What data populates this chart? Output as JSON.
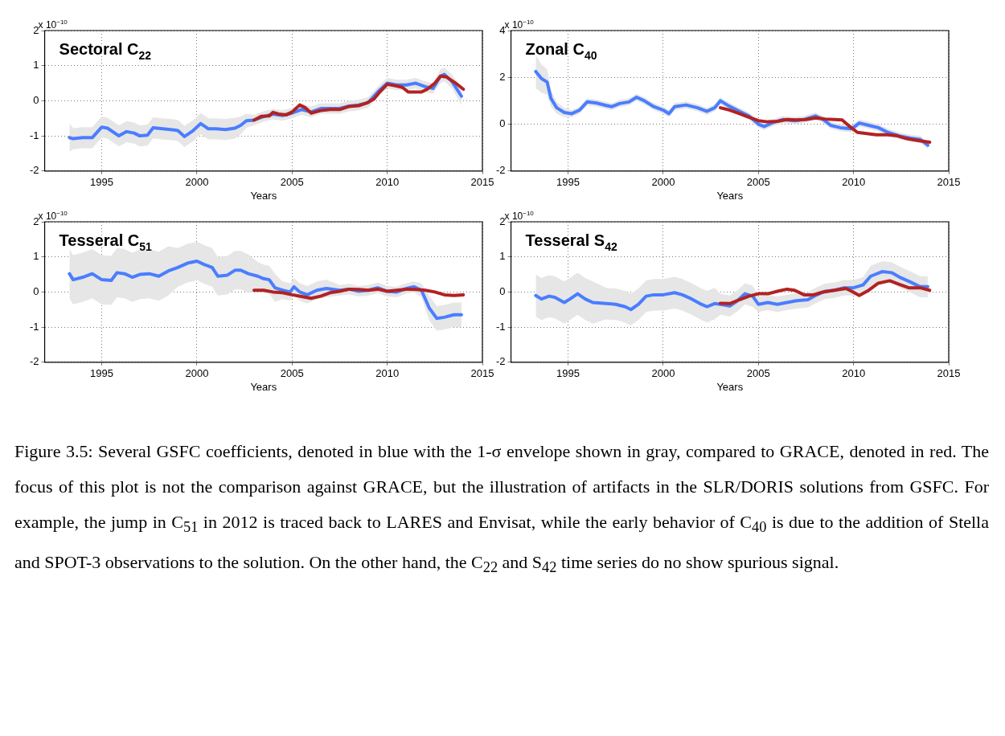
{
  "chart_data": [
    {
      "type": "line",
      "title": "Sectoral C$_{22}$",
      "xlabel": "Years",
      "annotations": [
        "x 10$^{−10}$"
      ],
      "xlim": [
        1992,
        2015
      ],
      "xticks": [
        1995,
        2000,
        2005,
        2010,
        2015
      ],
      "ylim": [
        -2,
        2
      ],
      "yticks": [
        -2,
        -1,
        0,
        1,
        2
      ],
      "grid": true,
      "marker": "none",
      "series": [
        {
          "color": "#4a7dff",
          "x": [
            1993.3,
            1993.5,
            1994.0,
            1994.5,
            1995.0,
            1995.3,
            1995.9,
            1996.3,
            1996.7,
            1997.0,
            1997.4,
            1997.7,
            1998.2,
            1998.8,
            1999.0,
            1999.35,
            1999.8,
            2000.2,
            2000.6,
            2001.0,
            2001.5,
            2002.0,
            2002.3,
            2002.6,
            2003.0,
            2003.5,
            2004.0,
            2004.5,
            2005.0,
            2005.5,
            2006.0,
            2006.5,
            2007.0,
            2007.5,
            2008.0,
            2008.5,
            2009.0,
            2009.5,
            2010.0,
            2010.5,
            2011.0,
            2011.5,
            2012.0,
            2012.4,
            2012.8,
            2013.0,
            2013.4,
            2013.9
          ],
          "values": [
            -1.05,
            -1.08,
            -1.05,
            -1.05,
            -0.75,
            -0.78,
            -1.0,
            -0.88,
            -0.92,
            -1.0,
            -0.98,
            -0.77,
            -0.8,
            -0.83,
            -0.85,
            -1.02,
            -0.85,
            -0.65,
            -0.8,
            -0.8,
            -0.82,
            -0.78,
            -0.7,
            -0.57,
            -0.55,
            -0.45,
            -0.38,
            -0.42,
            -0.35,
            -0.25,
            -0.32,
            -0.22,
            -0.22,
            -0.22,
            -0.15,
            -0.12,
            -0.05,
            0.25,
            0.5,
            0.45,
            0.45,
            0.5,
            0.4,
            0.35,
            0.7,
            0.75,
            0.55,
            0.13
          ],
          "upper": [
            -0.65,
            -0.78,
            -0.75,
            -0.75,
            -0.45,
            -0.48,
            -0.7,
            -0.58,
            -0.62,
            -0.7,
            -0.68,
            -0.47,
            -0.5,
            -0.53,
            -0.55,
            -0.72,
            -0.55,
            -0.35,
            -0.5,
            -0.5,
            -0.52,
            -0.48,
            -0.45,
            -0.37,
            -0.4,
            -0.3,
            -0.23,
            -0.27,
            -0.2,
            -0.1,
            -0.17,
            -0.07,
            -0.07,
            -0.07,
            0,
            0.03,
            0.1,
            0.4,
            0.65,
            0.6,
            0.6,
            0.65,
            0.55,
            0.5,
            0.9,
            0.95,
            0.75,
            0.38
          ],
          "lower": [
            -1.45,
            -1.38,
            -1.35,
            -1.35,
            -1.05,
            -1.08,
            -1.3,
            -1.18,
            -1.22,
            -1.3,
            -1.28,
            -1.07,
            -1.1,
            -1.13,
            -1.15,
            -1.32,
            -1.15,
            -0.95,
            -1.1,
            -1.1,
            -1.12,
            -1.08,
            -0.95,
            -0.77,
            -0.7,
            -0.6,
            -0.53,
            -0.57,
            -0.5,
            -0.4,
            -0.47,
            -0.37,
            -0.37,
            -0.37,
            -0.3,
            -0.27,
            -0.2,
            0.1,
            0.35,
            0.3,
            0.3,
            0.35,
            0.25,
            0.2,
            0.5,
            0.55,
            0.35,
            -0.12
          ]
        },
        {
          "color": "#b22222",
          "x": [
            2003.0,
            2003.4,
            2003.8,
            2004.0,
            2004.3,
            2004.7,
            2005.0,
            2005.4,
            2005.7,
            2006.0,
            2006.5,
            2007.0,
            2007.5,
            2008.0,
            2008.5,
            2008.9,
            2009.3,
            2009.6,
            2010.0,
            2010.5,
            2010.8,
            2011.1,
            2011.5,
            2011.8,
            2012.1,
            2012.5,
            2012.8,
            2013.1,
            2013.6,
            2014.0
          ],
          "values": [
            -0.55,
            -0.44,
            -0.43,
            -0.33,
            -0.38,
            -0.4,
            -0.32,
            -0.12,
            -0.2,
            -0.35,
            -0.28,
            -0.25,
            -0.25,
            -0.16,
            -0.14,
            -0.07,
            0.05,
            0.25,
            0.47,
            0.42,
            0.38,
            0.25,
            0.25,
            0.25,
            0.33,
            0.5,
            0.7,
            0.68,
            0.5,
            0.33
          ]
        }
      ]
    },
    {
      "type": "line",
      "title": "Zonal C$_{40}$",
      "xlabel": "Years",
      "annotations": [
        "x 10$^{−10}$"
      ],
      "xlim": [
        1992,
        2015
      ],
      "xticks": [
        1995,
        2000,
        2005,
        2010,
        2015
      ],
      "ylim": [
        -2,
        4
      ],
      "yticks": [
        -2,
        0,
        2,
        4
      ],
      "grid": true,
      "marker": "none",
      "series": [
        {
          "color": "#4a7dff",
          "x": [
            1993.3,
            1993.6,
            1993.9,
            1994.1,
            1994.4,
            1994.8,
            1995.2,
            1995.6,
            1996.0,
            1996.5,
            1997.0,
            1997.3,
            1997.7,
            1998.2,
            1998.6,
            1999.0,
            1999.5,
            2000.0,
            2000.3,
            2000.6,
            2001.2,
            2001.8,
            2002.3,
            2002.7,
            2003.0,
            2003.4,
            2004.0,
            2004.5,
            2005.0,
            2005.3,
            2005.7,
            2006.3,
            2006.9,
            2007.4,
            2008.0,
            2008.4,
            2008.8,
            2009.3,
            2009.9,
            2010.3,
            2010.8,
            2011.3,
            2011.8,
            2012.4,
            2013.0,
            2013.5,
            2013.9
          ],
          "values": [
            2.25,
            1.95,
            1.8,
            1.1,
            0.7,
            0.5,
            0.45,
            0.6,
            0.95,
            0.9,
            0.8,
            0.75,
            0.88,
            0.95,
            1.15,
            1.0,
            0.75,
            0.6,
            0.45,
            0.75,
            0.82,
            0.7,
            0.55,
            0.7,
            1.0,
            0.8,
            0.55,
            0.35,
            0.0,
            -0.1,
            0.05,
            0.2,
            0.15,
            0.2,
            0.35,
            0.2,
            -0.05,
            -0.15,
            -0.2,
            0.05,
            -0.05,
            -0.15,
            -0.35,
            -0.5,
            -0.6,
            -0.65,
            -0.9
          ],
          "upper": [
            2.95,
            2.55,
            2.35,
            1.45,
            0.95,
            0.7,
            0.6,
            0.75,
            1.1,
            1.05,
            0.95,
            0.9,
            1.03,
            1.1,
            1.3,
            1.15,
            0.9,
            0.75,
            0.6,
            0.9,
            0.97,
            0.85,
            0.7,
            0.85,
            1.15,
            0.95,
            0.7,
            0.5,
            0.15,
            0.05,
            0.2,
            0.35,
            0.3,
            0.35,
            0.5,
            0.35,
            0.1,
            0.0,
            -0.05,
            0.2,
            0.1,
            0.0,
            -0.2,
            -0.35,
            -0.45,
            -0.5,
            -0.75
          ],
          "lower": [
            1.55,
            1.35,
            1.25,
            0.75,
            0.45,
            0.3,
            0.3,
            0.45,
            0.8,
            0.75,
            0.65,
            0.6,
            0.73,
            0.8,
            1.0,
            0.85,
            0.6,
            0.45,
            0.3,
            0.6,
            0.67,
            0.55,
            0.4,
            0.55,
            0.85,
            0.65,
            0.4,
            0.2,
            -0.15,
            -0.25,
            -0.1,
            0.05,
            0.0,
            0.05,
            0.2,
            0.05,
            -0.2,
            -0.3,
            -0.35,
            -0.1,
            -0.2,
            -0.3,
            -0.5,
            -0.65,
            -0.75,
            -0.8,
            -1.05
          ]
        },
        {
          "color": "#b22222",
          "x": [
            2003.0,
            2003.5,
            2004.0,
            2004.5,
            2005.0,
            2005.5,
            2006.0,
            2006.5,
            2007.0,
            2007.5,
            2008.0,
            2008.5,
            2009.0,
            2009.4,
            2009.8,
            2010.2,
            2010.7,
            2011.2,
            2011.8,
            2012.3,
            2012.8,
            2013.4,
            2014.0
          ],
          "values": [
            0.7,
            0.6,
            0.45,
            0.3,
            0.15,
            0.1,
            0.12,
            0.2,
            0.18,
            0.2,
            0.27,
            0.22,
            0.2,
            0.18,
            -0.1,
            -0.35,
            -0.4,
            -0.45,
            -0.45,
            -0.5,
            -0.62,
            -0.7,
            -0.77
          ]
        }
      ]
    },
    {
      "type": "line",
      "title": "Tesseral C$_{51}$",
      "xlabel": "Years",
      "annotations": [
        "x 10$^{−10}$"
      ],
      "xlim": [
        1992,
        2015
      ],
      "xticks": [
        1995,
        2000,
        2005,
        2010,
        2015
      ],
      "ylim": [
        -2,
        2
      ],
      "yticks": [
        -2,
        -1,
        0,
        1,
        2
      ],
      "grid": true,
      "marker": "none",
      "series": [
        {
          "color": "#4a7dff",
          "x": [
            1993.3,
            1993.5,
            1994.0,
            1994.5,
            1995.0,
            1995.5,
            1995.8,
            1996.2,
            1996.6,
            1997.0,
            1997.5,
            1998.0,
            1998.5,
            1999.0,
            1999.5,
            2000.0,
            2000.4,
            2000.8,
            2001.1,
            2001.6,
            2002.0,
            2002.3,
            2002.7,
            2003.2,
            2003.5,
            2003.8,
            2004.1,
            2004.5,
            2004.9,
            2005.1,
            2005.4,
            2005.8,
            2006.3,
            2006.8,
            2007.5,
            2008.0,
            2008.5,
            2009.0,
            2009.5,
            2010.0,
            2010.5,
            2011.0,
            2011.4,
            2011.8,
            2012.2,
            2012.6,
            2013.0,
            2013.5,
            2013.9
          ],
          "values": [
            0.52,
            0.35,
            0.42,
            0.52,
            0.35,
            0.33,
            0.55,
            0.52,
            0.42,
            0.5,
            0.52,
            0.45,
            0.6,
            0.7,
            0.82,
            0.88,
            0.78,
            0.7,
            0.45,
            0.48,
            0.62,
            0.62,
            0.52,
            0.45,
            0.38,
            0.35,
            0.12,
            0.05,
            0.0,
            0.15,
            0.0,
            -0.08,
            0.05,
            0.1,
            0.05,
            0.08,
            0.02,
            0.05,
            0.12,
            0.02,
            0.0,
            0.1,
            0.15,
            0.05,
            -0.45,
            -0.75,
            -0.72,
            -0.65,
            -0.65
          ],
          "upper": [
            1.22,
            1.05,
            1.12,
            1.22,
            1.05,
            1.03,
            1.25,
            1.22,
            1.12,
            1.2,
            1.22,
            1.15,
            1.3,
            1.25,
            1.37,
            1.43,
            1.33,
            1.25,
            1.0,
            1.03,
            1.17,
            1.17,
            1.07,
            0.85,
            0.78,
            0.75,
            0.52,
            0.3,
            0.25,
            0.4,
            0.25,
            0.17,
            0.3,
            0.35,
            0.2,
            0.23,
            0.17,
            0.2,
            0.27,
            0.17,
            0.15,
            0.25,
            0.3,
            0.25,
            -0.1,
            -0.4,
            -0.37,
            -0.3,
            -0.3
          ],
          "lower": [
            -0.18,
            -0.35,
            -0.28,
            -0.18,
            -0.35,
            -0.37,
            -0.15,
            -0.18,
            -0.28,
            -0.2,
            -0.18,
            -0.25,
            -0.1,
            0.15,
            0.27,
            0.33,
            0.23,
            0.15,
            -0.1,
            -0.07,
            0.07,
            0.07,
            -0.03,
            0.05,
            -0.02,
            -0.05,
            -0.28,
            -0.2,
            -0.25,
            -0.1,
            -0.25,
            -0.33,
            -0.2,
            -0.15,
            -0.1,
            -0.07,
            -0.13,
            -0.1,
            -0.03,
            -0.13,
            -0.15,
            -0.05,
            0.0,
            -0.15,
            -0.8,
            -1.1,
            -1.07,
            -1.0,
            -1.0
          ]
        },
        {
          "color": "#b22222",
          "x": [
            2003.0,
            2003.5,
            2004.0,
            2004.5,
            2005.0,
            2005.5,
            2006.0,
            2006.5,
            2007.0,
            2007.5,
            2008.0,
            2008.5,
            2009.0,
            2009.5,
            2010.0,
            2010.5,
            2011.0,
            2011.5,
            2012.0,
            2012.5,
            2013.0,
            2013.5,
            2014.0
          ],
          "values": [
            0.05,
            0.05,
            0.0,
            -0.02,
            -0.08,
            -0.13,
            -0.18,
            -0.12,
            -0.02,
            0.02,
            0.08,
            0.07,
            0.05,
            0.08,
            0.02,
            0.05,
            0.08,
            0.07,
            0.05,
            0.0,
            -0.08,
            -0.1,
            -0.08
          ]
        }
      ]
    },
    {
      "type": "line",
      "title": "Tesseral S$_{42}$",
      "xlabel": "Years",
      "annotations": [
        "x 10$^{−10}$"
      ],
      "xlim": [
        1992,
        2015
      ],
      "xticks": [
        1995,
        2000,
        2005,
        2010,
        2015
      ],
      "ylim": [
        -2,
        2
      ],
      "yticks": [
        -2,
        -1,
        0,
        1,
        2
      ],
      "grid": true,
      "marker": "none",
      "series": [
        {
          "color": "#4a7dff",
          "x": [
            1993.3,
            1993.6,
            1994.0,
            1994.3,
            1994.8,
            1995.1,
            1995.5,
            1995.9,
            1996.3,
            1997.0,
            1997.5,
            1998.0,
            1998.3,
            1998.7,
            1999.1,
            1999.5,
            2000.0,
            2000.6,
            2001.0,
            2001.5,
            2002.0,
            2002.3,
            2002.7,
            2003.0,
            2003.5,
            2003.9,
            2004.3,
            2004.7,
            2005.0,
            2005.5,
            2006.0,
            2006.5,
            2007.0,
            2007.6,
            2008.0,
            2008.5,
            2009.0,
            2009.5,
            2010.0,
            2010.5,
            2010.9,
            2011.5,
            2012.0,
            2012.5,
            2013.0,
            2013.5,
            2013.9
          ],
          "values": [
            -0.1,
            -0.2,
            -0.12,
            -0.15,
            -0.3,
            -0.2,
            -0.05,
            -0.2,
            -0.3,
            -0.33,
            -0.35,
            -0.42,
            -0.5,
            -0.35,
            -0.12,
            -0.08,
            -0.08,
            -0.02,
            -0.08,
            -0.2,
            -0.35,
            -0.42,
            -0.33,
            -0.35,
            -0.4,
            -0.25,
            -0.05,
            -0.12,
            -0.35,
            -0.3,
            -0.35,
            -0.3,
            -0.25,
            -0.22,
            -0.1,
            0.02,
            0.05,
            0.12,
            0.12,
            0.2,
            0.45,
            0.58,
            0.55,
            0.4,
            0.28,
            0.15,
            0.15
          ],
          "upper": [
            0.5,
            0.4,
            0.48,
            0.45,
            0.3,
            0.4,
            0.55,
            0.4,
            0.3,
            0.12,
            0.1,
            0.03,
            -0.05,
            0.1,
            0.33,
            0.37,
            0.37,
            0.43,
            0.37,
            0.25,
            0.1,
            0.03,
            0.12,
            -0.05,
            -0.1,
            0.05,
            0.25,
            0.18,
            -0.13,
            -0.08,
            -0.13,
            -0.08,
            -0.03,
            0.0,
            0.12,
            0.24,
            0.27,
            0.34,
            0.34,
            0.42,
            0.75,
            0.88,
            0.85,
            0.7,
            0.58,
            0.45,
            0.45
          ],
          "lower": [
            -0.7,
            -0.8,
            -0.72,
            -0.75,
            -0.9,
            -0.8,
            -0.65,
            -0.8,
            -0.9,
            -0.78,
            -0.8,
            -0.87,
            -0.95,
            -0.8,
            -0.57,
            -0.53,
            -0.53,
            -0.47,
            -0.53,
            -0.65,
            -0.8,
            -0.87,
            -0.78,
            -0.65,
            -0.7,
            -0.55,
            -0.35,
            -0.42,
            -0.57,
            -0.52,
            -0.57,
            -0.52,
            -0.47,
            -0.44,
            -0.32,
            -0.2,
            -0.17,
            -0.1,
            -0.1,
            -0.02,
            0.15,
            0.28,
            0.25,
            0.1,
            -0.02,
            -0.15,
            -0.15
          ]
        },
        {
          "color": "#b22222",
          "x": [
            2003.0,
            2003.5,
            2004.0,
            2004.5,
            2005.0,
            2005.5,
            2006.0,
            2006.5,
            2006.9,
            2007.4,
            2007.9,
            2008.4,
            2009.0,
            2009.6,
            2009.9,
            2010.3,
            2010.8,
            2011.3,
            2011.9,
            2012.4,
            2012.9,
            2013.5,
            2014.0
          ],
          "values": [
            -0.32,
            -0.33,
            -0.22,
            -0.12,
            -0.05,
            -0.05,
            0.02,
            0.08,
            0.05,
            -0.08,
            -0.08,
            0.0,
            0.05,
            0.1,
            0.02,
            -0.1,
            0.05,
            0.25,
            0.32,
            0.22,
            0.12,
            0.12,
            0.05
          ]
        }
      ]
    },
    {
      "type": "other",
      "annotations": [
        "Figure 3.5: Several GSFC coefficients, denoted in blue with the 1-σ envelope shown in gray, compared to GRACE, denoted in red.  The focus of this plot is not the comparison against GRACE, but the illustration of artifacts in the SLR/DORIS solutions from GSFC. For example, the jump in C$_{51}$ in 2012 is traced back to LARES and Envisat, while the early behavior of C$_{40}$ is due to the addition of Stella and SPOT-3 observations to the solution. On the other hand, the C$_{22}$ and S$_{42}$ time series do no show spurious signal."
      ]
    }
  ]
}
